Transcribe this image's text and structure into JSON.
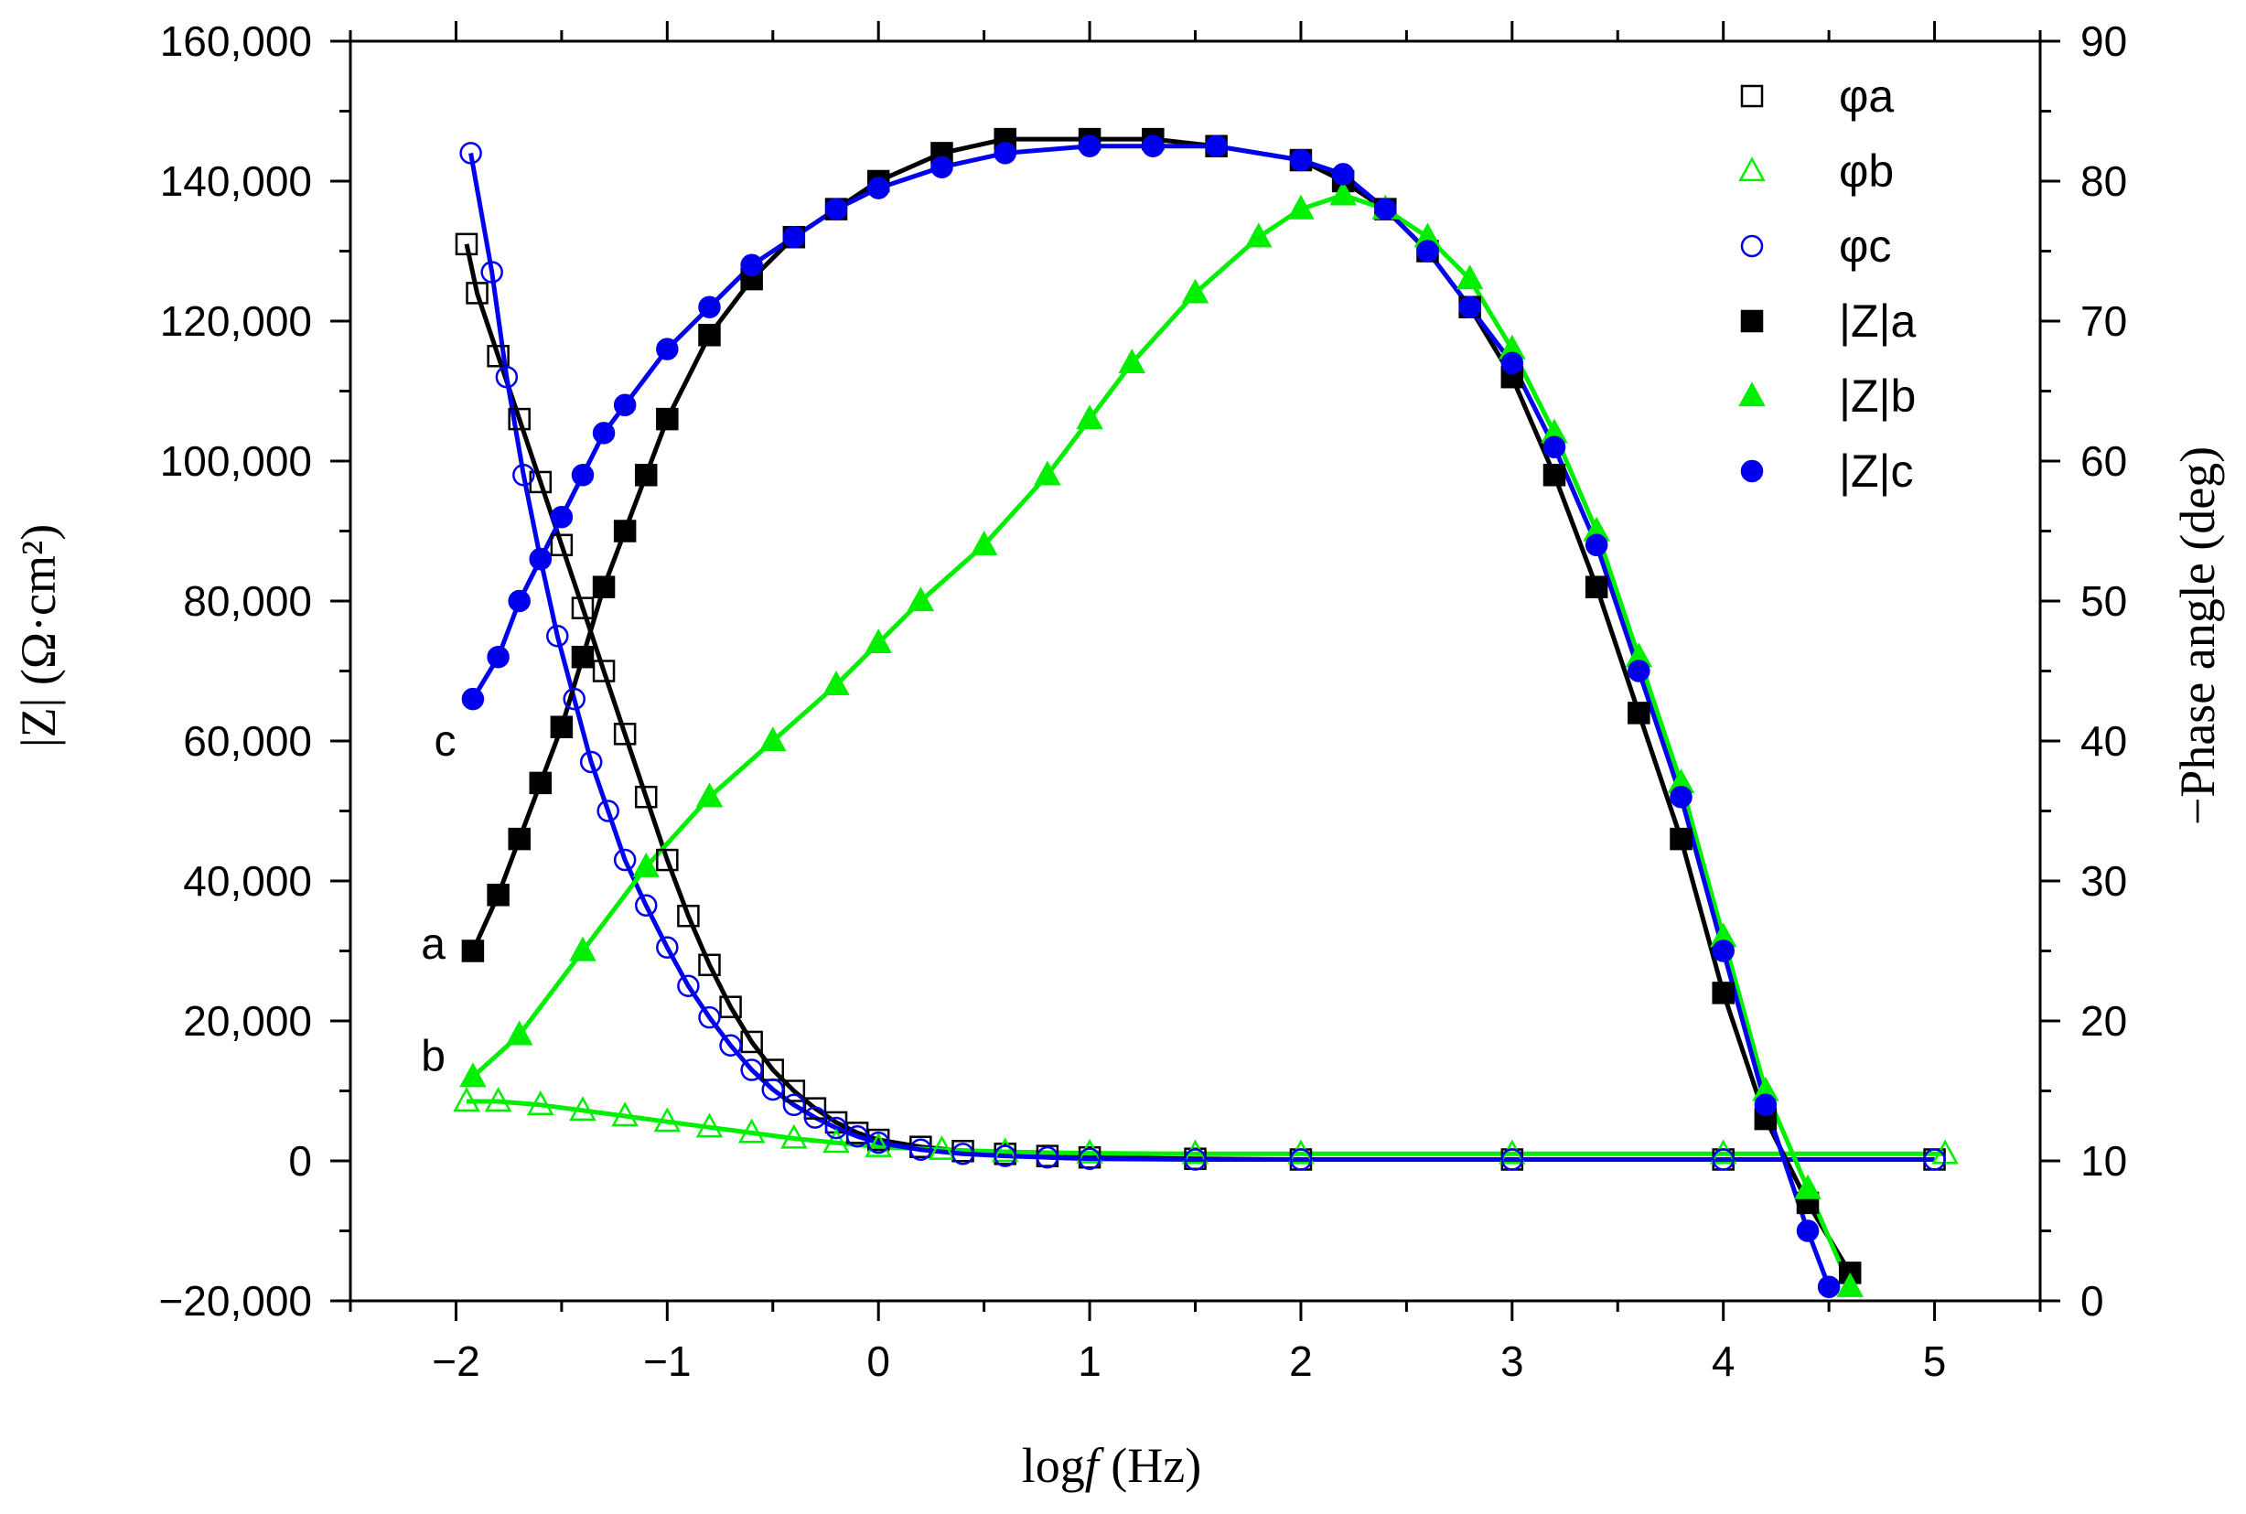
{
  "colors": {
    "a": "#000000",
    "b": "#00ee00",
    "c": "#0000ee"
  },
  "chart_data": {
    "type": "line",
    "x_axis": {
      "label_prefix": "log",
      "label_var": "f",
      "label_unit": " (Hz)",
      "range": [
        -2.5,
        5.5
      ],
      "ticks": [
        -2,
        -1,
        0,
        1,
        2,
        3,
        4,
        5
      ],
      "tick_labels": [
        "−2",
        "−1",
        "0",
        "1",
        "2",
        "3",
        "4",
        "5"
      ]
    },
    "y_left": {
      "label": "|Z| (Ω·cm²)",
      "range": [
        -20000,
        160000
      ],
      "ticks": [
        -20000,
        0,
        20000,
        40000,
        60000,
        80000,
        100000,
        120000,
        140000,
        160000
      ],
      "tick_labels": [
        "−20,000",
        "0",
        "20,000",
        "40,000",
        "60,000",
        "80,000",
        "100,000",
        "120,000",
        "140,000",
        "160,000"
      ]
    },
    "y_right": {
      "label": "−Phase angle (deg)",
      "range": [
        0,
        90
      ],
      "ticks": [
        0,
        10,
        20,
        30,
        40,
        50,
        60,
        70,
        80,
        90
      ],
      "tick_labels": [
        "0",
        "10",
        "20",
        "30",
        "40",
        "50",
        "60",
        "70",
        "80",
        "90"
      ]
    },
    "legend": {
      "position": "top-right",
      "entries": [
        {
          "label": "φa",
          "series": "phi_a"
        },
        {
          "label": "φb",
          "series": "phi_b"
        },
        {
          "label": "φc",
          "series": "phi_c"
        },
        {
          "label": "|Z|a",
          "series": "Z_a"
        },
        {
          "label": "|Z|b",
          "series": "Z_b"
        },
        {
          "label": "|Z|c",
          "series": "Z_c"
        }
      ]
    },
    "curve_labels": [
      {
        "text": "c",
        "near": "Z_c",
        "x": -2.0,
        "y": 60000
      },
      {
        "text": "a",
        "near": "Z_a",
        "x": -2.05,
        "y": 31000
      },
      {
        "text": "b",
        "near": "Z_b",
        "x": -2.05,
        "y": 15000
      }
    ],
    "series": [
      {
        "name": "phi_a",
        "display": "φa",
        "axis": "left",
        "marker": "square",
        "filled": false,
        "color": "#000000",
        "x": [
          -1.95,
          -1.9,
          -1.8,
          -1.7,
          -1.6,
          -1.5,
          -1.4,
          -1.3,
          -1.2,
          -1.1,
          -1.0,
          -0.9,
          -0.8,
          -0.7,
          -0.6,
          -0.5,
          -0.4,
          -0.3,
          -0.2,
          -0.1,
          0.0,
          0.2,
          0.4,
          0.6,
          0.8,
          1.0,
          1.5,
          2.0,
          3.0,
          4.0,
          5.0
        ],
        "y": [
          131000,
          124000,
          115000,
          106000,
          97000,
          88000,
          79000,
          70000,
          61000,
          52000,
          43000,
          35000,
          28000,
          22000,
          17000,
          13000,
          10000,
          7500,
          5500,
          4000,
          3000,
          2000,
          1400,
          1000,
          700,
          500,
          300,
          200,
          200,
          200,
          200
        ]
      },
      {
        "name": "phi_b",
        "display": "φb",
        "axis": "left",
        "marker": "triangle",
        "filled": false,
        "color": "#00ee00",
        "x": [
          -1.95,
          -1.8,
          -1.6,
          -1.4,
          -1.2,
          -1.0,
          -0.8,
          -0.6,
          -0.4,
          -0.2,
          0.0,
          0.3,
          0.6,
          1.0,
          1.5,
          2.0,
          3.0,
          4.0,
          5.05
        ],
        "y": [
          8500,
          8500,
          8000,
          7200,
          6400,
          5600,
          4800,
          4000,
          3200,
          2600,
          2000,
          1600,
          1300,
          1100,
          1000,
          1000,
          1000,
          1000,
          1000
        ]
      },
      {
        "name": "phi_c",
        "display": "φc",
        "axis": "left",
        "marker": "circle",
        "filled": false,
        "color": "#0000ee",
        "x": [
          -1.93,
          -1.83,
          -1.76,
          -1.68,
          -1.6,
          -1.52,
          -1.44,
          -1.36,
          -1.28,
          -1.2,
          -1.1,
          -1.0,
          -0.9,
          -0.8,
          -0.7,
          -0.6,
          -0.5,
          -0.4,
          -0.3,
          -0.2,
          -0.1,
          0.0,
          0.2,
          0.4,
          0.6,
          0.8,
          1.0,
          1.5,
          2.0,
          3.0,
          4.0,
          5.0
        ],
        "y": [
          144000,
          127000,
          112000,
          98000,
          86000,
          75000,
          66000,
          57000,
          50000,
          43000,
          36500,
          30500,
          25000,
          20500,
          16500,
          13000,
          10200,
          8000,
          6200,
          4700,
          3500,
          2600,
          1600,
          1000,
          700,
          500,
          300,
          200,
          200,
          200,
          200,
          200
        ]
      },
      {
        "name": "Z_a",
        "display": "|Z|a",
        "axis": "right",
        "marker": "square",
        "filled": true,
        "color": "#000000",
        "x": [
          -1.92,
          -1.8,
          -1.7,
          -1.6,
          -1.5,
          -1.4,
          -1.3,
          -1.2,
          -1.1,
          -1.0,
          -0.8,
          -0.6,
          -0.4,
          -0.2,
          0.0,
          0.3,
          0.6,
          1.0,
          1.3,
          1.6,
          2.0,
          2.2,
          2.4,
          2.6,
          2.8,
          3.0,
          3.2,
          3.4,
          3.6,
          3.8,
          4.0,
          4.2,
          4.4,
          4.6
        ],
        "y": [
          25,
          29,
          33,
          37,
          41,
          46,
          51,
          55,
          59,
          63,
          69,
          73,
          76,
          78,
          80,
          82,
          83,
          83,
          83,
          82.5,
          81.5,
          80,
          78,
          75,
          71,
          66,
          59,
          51,
          42,
          33,
          22,
          13,
          7,
          2
        ]
      },
      {
        "name": "Z_b",
        "display": "|Z|b",
        "axis": "right",
        "marker": "triangle",
        "filled": true,
        "color": "#00ee00",
        "x": [
          -1.92,
          -1.7,
          -1.4,
          -1.1,
          -0.8,
          -0.5,
          -0.2,
          0.0,
          0.2,
          0.5,
          0.8,
          1.0,
          1.2,
          1.5,
          1.8,
          2.0,
          2.2,
          2.4,
          2.6,
          2.8,
          3.0,
          3.2,
          3.4,
          3.6,
          3.8,
          4.0,
          4.2,
          4.4,
          4.6
        ],
        "y": [
          16,
          19,
          25,
          31,
          36,
          40,
          44,
          47,
          50,
          54,
          59,
          63,
          67,
          72,
          76,
          78,
          79,
          78,
          76,
          73,
          68,
          62,
          55,
          46,
          37,
          26,
          15,
          8,
          1
        ]
      },
      {
        "name": "Z_c",
        "display": "|Z|c",
        "axis": "right",
        "marker": "circle",
        "filled": true,
        "color": "#0000ee",
        "x": [
          -1.92,
          -1.8,
          -1.7,
          -1.6,
          -1.5,
          -1.4,
          -1.3,
          -1.2,
          -1.0,
          -0.8,
          -0.6,
          -0.4,
          -0.2,
          0.0,
          0.3,
          0.6,
          1.0,
          1.3,
          1.6,
          2.0,
          2.2,
          2.4,
          2.6,
          2.8,
          3.0,
          3.2,
          3.4,
          3.6,
          3.8,
          4.0,
          4.2,
          4.4,
          4.5
        ],
        "y": [
          43,
          46,
          50,
          53,
          56,
          59,
          62,
          64,
          68,
          71,
          74,
          76,
          78,
          79.5,
          81,
          82,
          82.5,
          82.5,
          82.5,
          81.5,
          80.5,
          78,
          75,
          71,
          67,
          61,
          54,
          45,
          36,
          25,
          14,
          5,
          1
        ]
      }
    ]
  }
}
